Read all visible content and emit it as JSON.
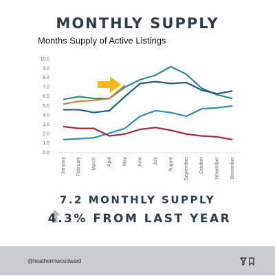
{
  "chart_data": {
    "type": "line",
    "title": "MONTHLY SUPPLY",
    "subtitle": "Months Supply of Active Listings",
    "categories": [
      "January",
      "February",
      "March",
      "April",
      "May",
      "June",
      "July",
      "August",
      "September",
      "October",
      "November",
      "December"
    ],
    "series": [
      {
        "color": "#2b8a8c",
        "values": [
          5.7,
          6.0,
          5.8,
          5.8,
          7.0,
          7.8,
          8.3,
          9.2,
          8.4,
          6.9,
          6.2,
          5.8
        ]
      },
      {
        "color": "#d97f2a",
        "values": [
          5.2,
          5.5,
          5.6,
          5.8,
          7.2,
          null,
          null,
          null,
          null,
          null,
          null,
          null
        ]
      },
      {
        "color": "#1e5a88",
        "values": [
          4.6,
          4.6,
          4.3,
          4.5,
          6.0,
          7.4,
          7.6,
          7.4,
          7.5,
          6.7,
          6.3,
          6.6
        ]
      },
      {
        "color": "#2a8bc9",
        "values": [
          1.4,
          1.5,
          1.6,
          2.1,
          2.6,
          3.9,
          4.5,
          4.3,
          3.9,
          4.7,
          4.8,
          5.0
        ]
      },
      {
        "color": "#a22a3c",
        "values": [
          2.8,
          2.6,
          2.6,
          1.8,
          2.0,
          2.5,
          2.7,
          2.4,
          2.0,
          1.8,
          1.7,
          1.4
        ]
      }
    ],
    "ylim": [
      0,
      10
    ],
    "yticks": [
      {
        "value": 0,
        "label": "0.0"
      },
      {
        "value": 1,
        "label": "1.0"
      },
      {
        "value": 2,
        "label": "2.0"
      },
      {
        "value": 3,
        "label": "3.0"
      },
      {
        "value": 4,
        "label": "4.0"
      },
      {
        "value": 5,
        "label": "5.0"
      },
      {
        "value": 6,
        "label": "6.0"
      },
      {
        "value": 7,
        "label": "7.0"
      },
      {
        "value": 8,
        "label": "8.0"
      },
      {
        "value": 9,
        "label": "9.0"
      },
      {
        "value": 10,
        "label": "10.0"
      }
    ],
    "grid": false,
    "annotations": [
      "7.2 MONTHLY SUPPLY",
      "4.3% FROM LAST YEAR"
    ]
  },
  "footer": {
    "handle": "@heathermwoodward"
  }
}
